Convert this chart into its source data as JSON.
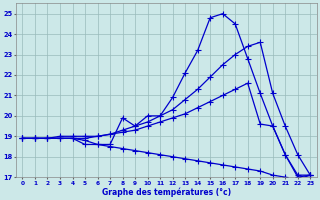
{
  "xlabel": "Graphe des températures (°c)",
  "hours": [
    0,
    1,
    2,
    3,
    4,
    5,
    6,
    7,
    8,
    9,
    10,
    11,
    12,
    13,
    14,
    15,
    16,
    17,
    18,
    19,
    20,
    21,
    22,
    23
  ],
  "temp_main": [
    18.9,
    18.9,
    18.9,
    18.9,
    18.9,
    18.6,
    18.6,
    18.6,
    19.9,
    19.5,
    20.0,
    20.0,
    20.9,
    22.1,
    23.2,
    24.8,
    25.0,
    24.5,
    22.8,
    21.1,
    19.5,
    18.1,
    17.0,
    17.1
  ],
  "temp_upper": [
    18.9,
    18.9,
    18.9,
    19.0,
    19.0,
    19.0,
    19.0,
    19.1,
    19.3,
    19.5,
    19.7,
    20.0,
    20.3,
    20.8,
    21.3,
    21.9,
    22.5,
    23.0,
    23.4,
    23.6,
    21.1,
    19.5,
    18.1,
    17.1
  ],
  "temp_lower": [
    18.9,
    18.9,
    18.9,
    18.9,
    18.9,
    18.8,
    18.6,
    18.5,
    18.4,
    18.3,
    18.2,
    18.1,
    18.0,
    17.9,
    17.8,
    17.7,
    17.6,
    17.5,
    17.4,
    17.3,
    17.1,
    17.0,
    16.9,
    17.1
  ],
  "temp_mid": [
    18.9,
    18.9,
    18.9,
    18.9,
    18.9,
    18.9,
    19.0,
    19.1,
    19.2,
    19.3,
    19.5,
    19.7,
    19.9,
    20.1,
    20.4,
    20.7,
    21.0,
    21.3,
    21.6,
    19.6,
    19.5,
    18.1,
    17.1,
    17.1
  ],
  "ylim": [
    17,
    25.5
  ],
  "yticks": [
    17,
    18,
    19,
    20,
    21,
    22,
    23,
    24,
    25
  ],
  "bg_color": "#cce8e8",
  "line_color": "#0000cc",
  "grid_color": "#99bbbb",
  "marker": "+",
  "marker_size": 4,
  "line_width": 0.9
}
